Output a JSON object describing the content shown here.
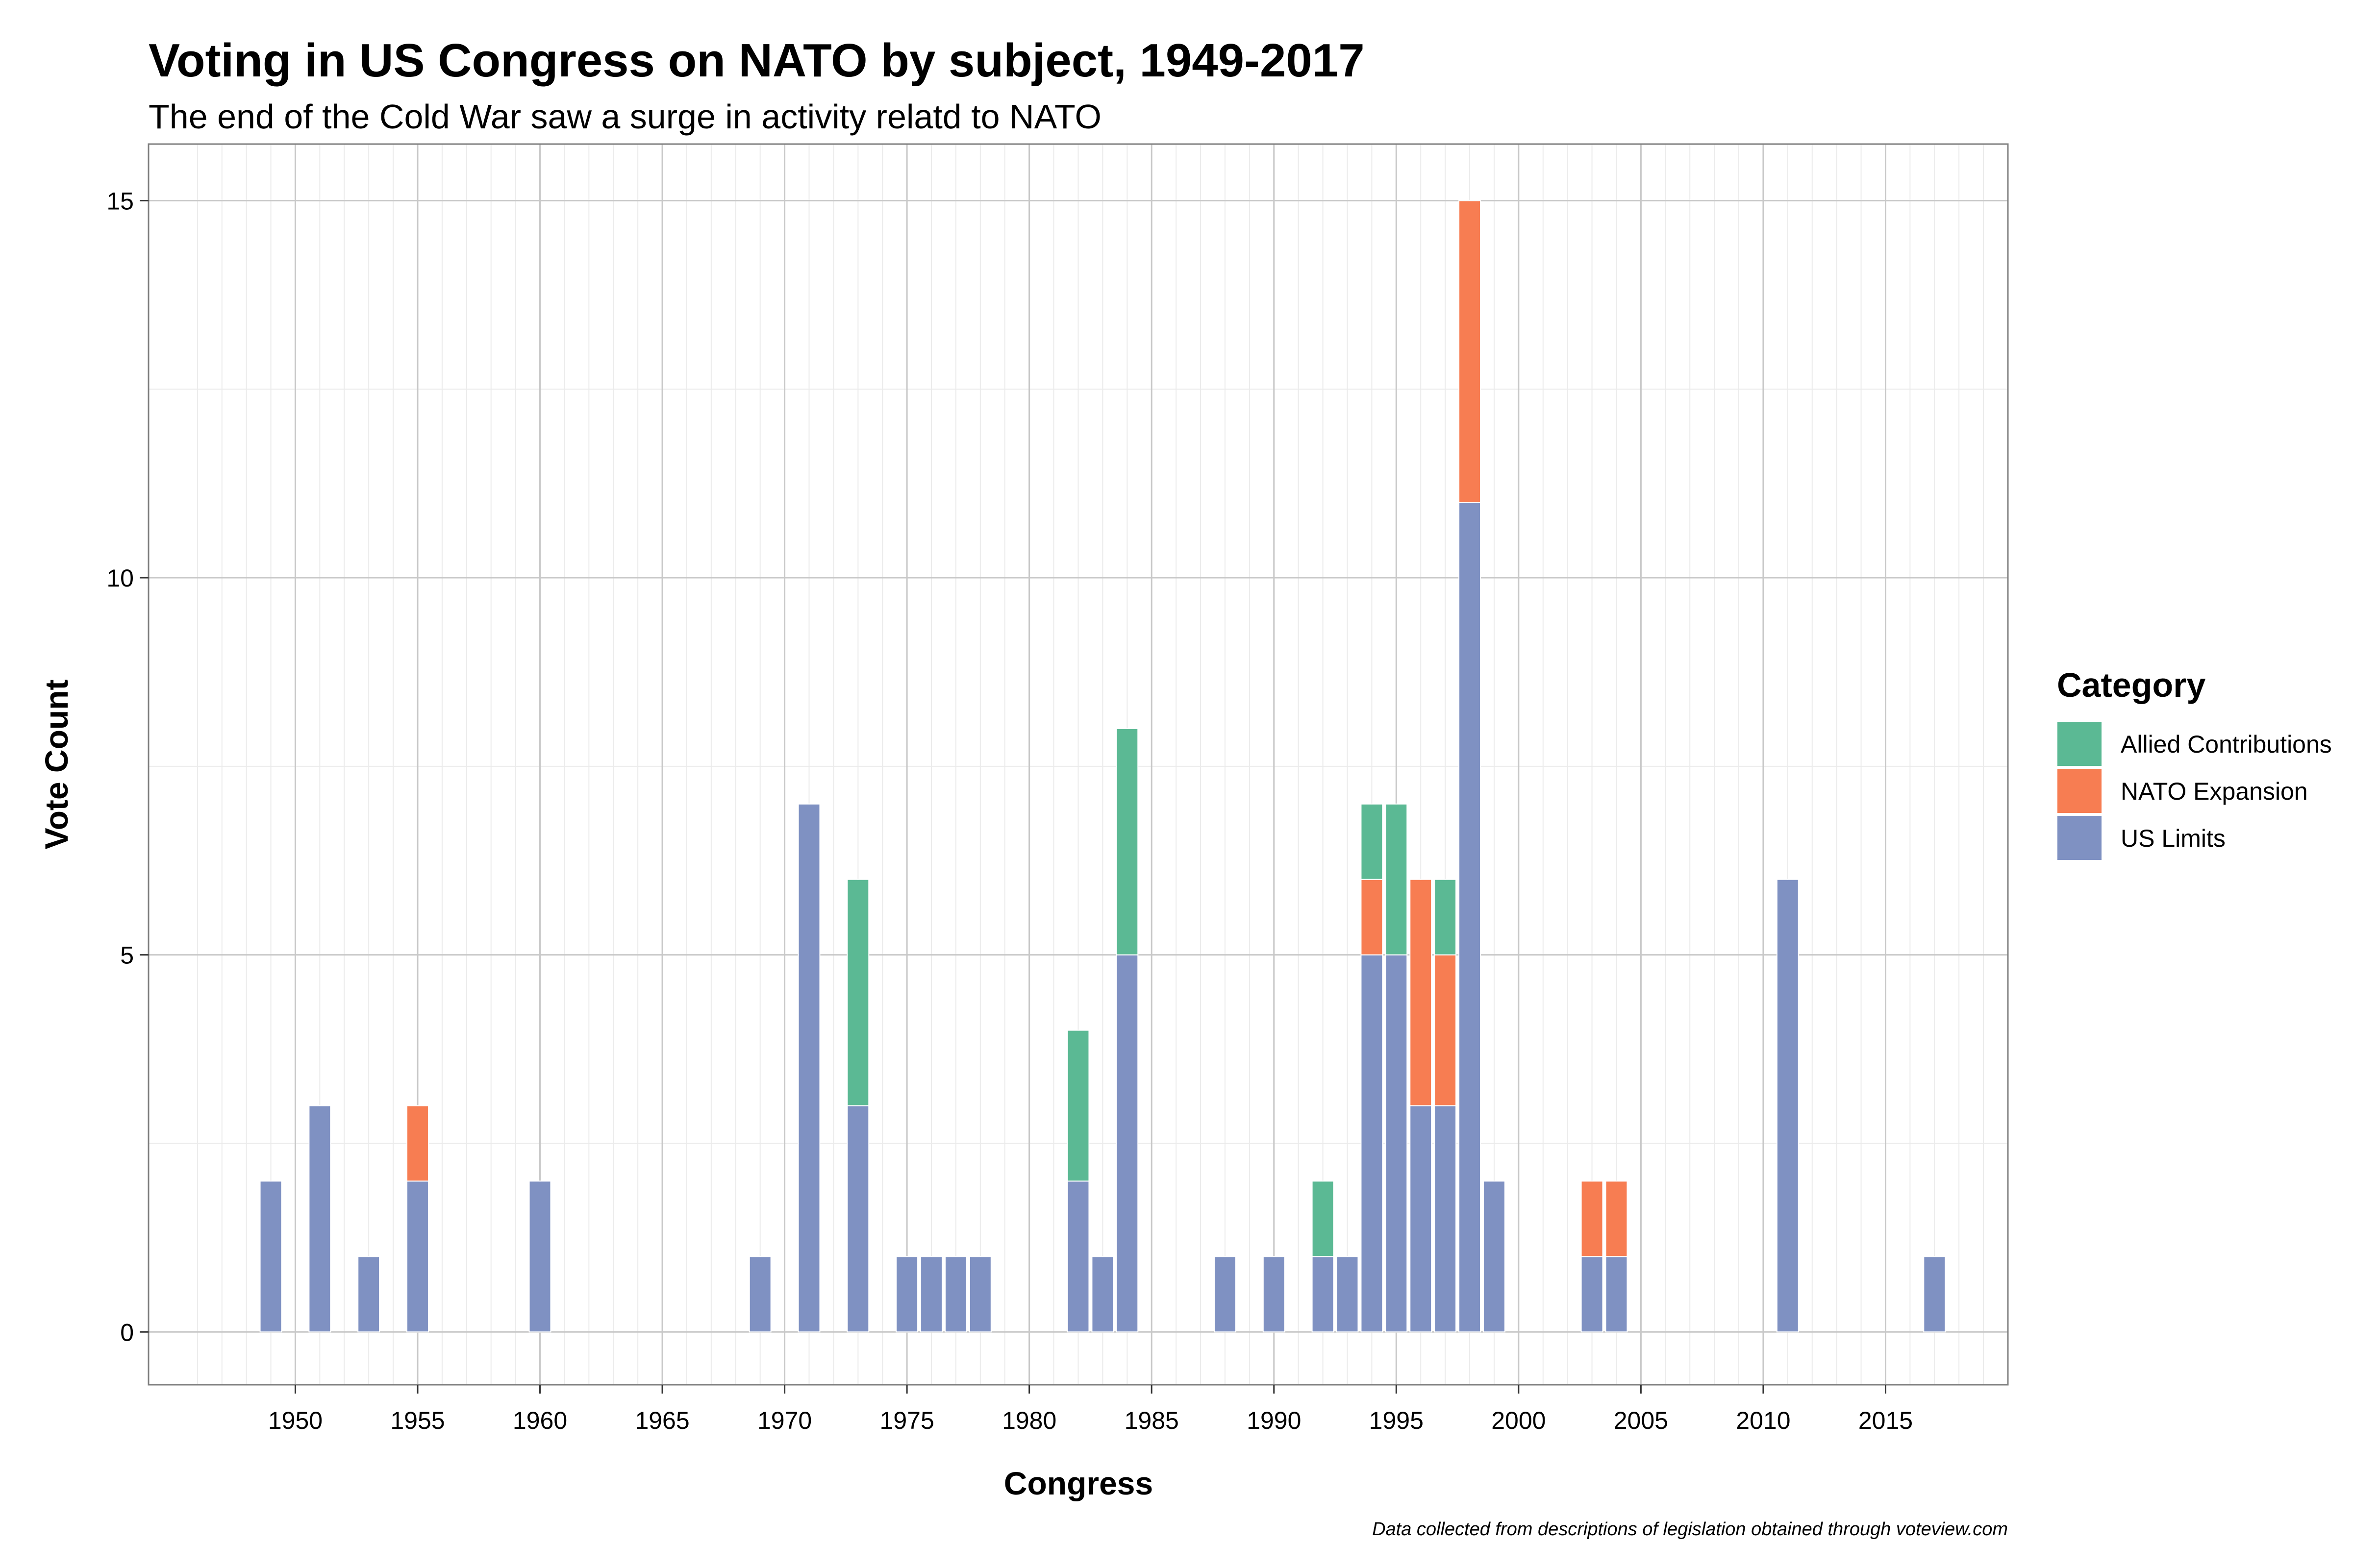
{
  "chart_data": {
    "type": "bar",
    "stacked": true,
    "title": "Voting in US Congress on NATO by subject, 1949-2017",
    "subtitle": "The end of the Cold War saw a surge in activity relatd to NATO",
    "xlabel": "Congress",
    "ylabel": "Vote Count",
    "caption": "Data collected from descriptions of legislation obtained through voteview.com",
    "xlim": [
      1944,
      2020
    ],
    "ylim": [
      -0.7,
      15.75
    ],
    "x_ticks": [
      "1950",
      "1955",
      "1960",
      "1965",
      "1970",
      "1975",
      "1980",
      "1985",
      "1990",
      "1995",
      "2000",
      "2005",
      "2010",
      "2015"
    ],
    "y_ticks": [
      "0",
      "5",
      "10",
      "15"
    ],
    "grid": true,
    "legend": {
      "title": "Category",
      "position": "right",
      "entries": [
        "Allied Contributions",
        "NATO Expansion",
        "US Limits"
      ]
    },
    "colors": {
      "Allied Contributions": "#5bb994",
      "NATO Expansion": "#f77d52",
      "US Limits": "#7f91c2"
    },
    "series": [
      {
        "name": "US Limits",
        "points": [
          [
            1949,
            2
          ],
          [
            1951,
            3
          ],
          [
            1953,
            1
          ],
          [
            1955,
            2
          ],
          [
            1960,
            2
          ],
          [
            1969,
            1
          ],
          [
            1971,
            7
          ],
          [
            1973,
            3
          ],
          [
            1975,
            1
          ],
          [
            1976,
            1
          ],
          [
            1977,
            1
          ],
          [
            1978,
            1
          ],
          [
            1982,
            2
          ],
          [
            1983,
            1
          ],
          [
            1984,
            5
          ],
          [
            1988,
            1
          ],
          [
            1990,
            1
          ],
          [
            1992,
            1
          ],
          [
            1993,
            1
          ],
          [
            1994,
            5
          ],
          [
            1995,
            5
          ],
          [
            1996,
            3
          ],
          [
            1997,
            3
          ],
          [
            1998,
            11
          ],
          [
            1999,
            2
          ],
          [
            2003,
            1
          ],
          [
            2004,
            1
          ],
          [
            2011,
            6
          ],
          [
            2017,
            1
          ]
        ]
      },
      {
        "name": "NATO Expansion",
        "points": [
          [
            1955,
            1
          ],
          [
            1994,
            1
          ],
          [
            1996,
            3
          ],
          [
            1997,
            2
          ],
          [
            1998,
            4
          ],
          [
            2003,
            1
          ],
          [
            2004,
            1
          ]
        ]
      },
      {
        "name": "Allied Contributions",
        "points": [
          [
            1973,
            3
          ],
          [
            1982,
            2
          ],
          [
            1984,
            3
          ],
          [
            1992,
            1
          ],
          [
            1994,
            1
          ],
          [
            1995,
            2
          ],
          [
            1997,
            1
          ]
        ]
      }
    ]
  }
}
